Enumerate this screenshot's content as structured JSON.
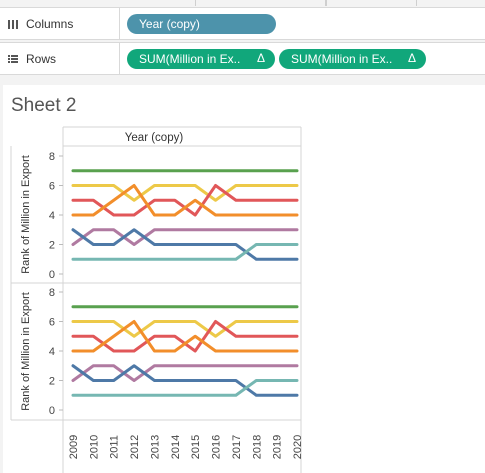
{
  "shelves": {
    "columns": {
      "label": "Columns",
      "pills": [
        {
          "text": "Year (copy)"
        }
      ]
    },
    "rows": {
      "label": "Rows",
      "pills": [
        {
          "text": "SUM(Million in Ex..",
          "delta": "Δ"
        },
        {
          "text": "SUM(Million in Ex..",
          "delta": "Δ"
        }
      ]
    }
  },
  "sheet": {
    "title": "Sheet 2"
  },
  "chart_data": {
    "type": "line",
    "header": "Year (copy)",
    "ylabel": "Rank of Million in Export",
    "x": [
      "2009",
      "2010",
      "2011",
      "2012",
      "2013",
      "2014",
      "2015",
      "2016",
      "2017",
      "2018",
      "2019",
      "2020"
    ],
    "yticks": [
      0,
      2,
      4,
      6,
      8
    ],
    "ylim": [
      0,
      8
    ],
    "panes": 2,
    "series": [
      {
        "color": "#59a14f",
        "values": [
          7,
          7,
          7,
          7,
          7,
          7,
          7,
          7,
          7,
          7,
          7,
          7
        ]
      },
      {
        "color": "#edc948",
        "values": [
          6,
          6,
          6,
          5,
          6,
          6,
          6,
          5,
          6,
          6,
          6,
          6
        ]
      },
      {
        "color": "#e15759",
        "values": [
          5,
          5,
          4,
          4,
          5,
          5,
          4,
          6,
          5,
          5,
          5,
          5
        ]
      },
      {
        "color": "#f28e2b",
        "values": [
          4,
          4,
          5,
          6,
          4,
          4,
          5,
          4,
          4,
          4,
          4,
          4
        ]
      },
      {
        "color": "#b07aa1",
        "values": [
          2,
          3,
          3,
          2,
          3,
          3,
          3,
          3,
          3,
          3,
          3,
          3
        ]
      },
      {
        "color": "#4e79a7",
        "values": [
          3,
          2,
          2,
          3,
          2,
          2,
          2,
          2,
          2,
          1,
          1,
          1
        ]
      },
      {
        "color": "#76b7b2",
        "values": [
          1,
          1,
          1,
          1,
          1,
          1,
          1,
          1,
          1,
          2,
          2,
          2
        ]
      }
    ]
  }
}
